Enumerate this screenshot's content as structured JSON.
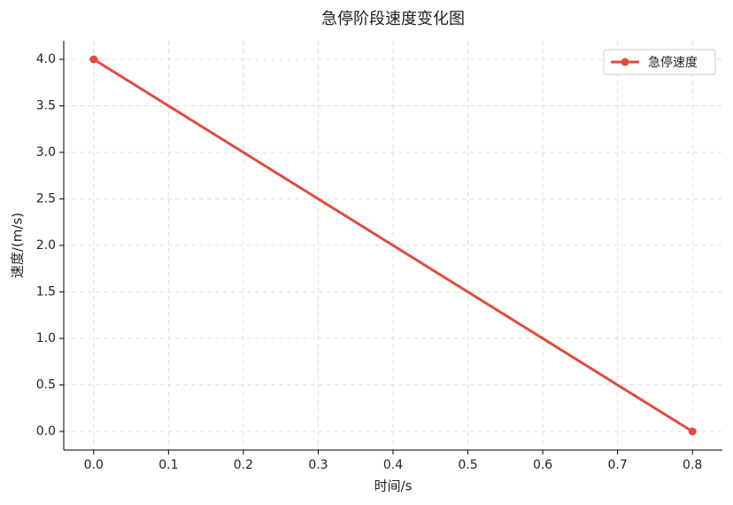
{
  "chart_data": {
    "type": "line",
    "title": "急停阶段速度变化图",
    "xlabel": "时间/s",
    "ylabel": "速度/(m/s)",
    "x": [
      0,
      0.8
    ],
    "series": [
      {
        "name": "急停速度",
        "color": "#e34a3c",
        "values": [
          4,
          0
        ]
      }
    ],
    "xlim": [
      -0.04,
      0.84
    ],
    "ylim": [
      -0.2,
      4.2
    ],
    "xticks": [
      {
        "value": 0,
        "label": "0.0"
      },
      0.1,
      0.2,
      0.3,
      0.4,
      0.5,
      0.6,
      0.7,
      0.8
    ],
    "yticks": [
      {
        "value": 0,
        "label": "0.0"
      },
      0.5,
      {
        "value": 1,
        "label": "1.0"
      },
      1.5,
      {
        "value": 2,
        "label": "2.0"
      },
      2.5,
      {
        "value": 3,
        "label": "3.0"
      },
      3.5,
      {
        "value": 4,
        "label": "4.0"
      }
    ],
    "grid": true,
    "legend": "upper right"
  }
}
